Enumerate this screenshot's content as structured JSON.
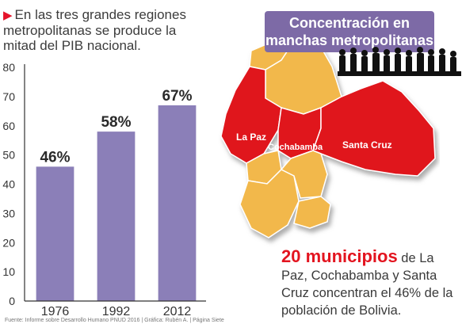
{
  "intro": {
    "bullet": "▶",
    "text": "En las  tres grandes regiones metropolitanas se produce la mitad del PIB nacional."
  },
  "title": "Concentración en manchas metropolitanas",
  "map": {
    "labels": {
      "la_paz": "La Paz",
      "cochabamba": "Cochabamba",
      "santa_cruz": "Santa Cruz"
    },
    "colors": {
      "highlight": "#e0141e",
      "other": "#f2b84b",
      "border": "#ffffff"
    }
  },
  "caption": {
    "highlight": "20 municipios",
    "text": " de La Paz, Cochabamba y Santa Cruz concentran el 46% de la población de Bolivia."
  },
  "source": "Fuente: Informe sobre Desarrollo Humano PNUD 2016 | Gráfica: Rubén A. | Página Siete",
  "chart_data": {
    "type": "bar",
    "categories": [
      "1976",
      "1992",
      "2012"
    ],
    "values": [
      46,
      58,
      67
    ],
    "data_labels": [
      "46%",
      "58%",
      "67%"
    ],
    "yticks": [
      "0",
      "10",
      "20",
      "30",
      "40",
      "50",
      "60",
      "70",
      "80"
    ],
    "ylim": [
      0,
      80
    ],
    "grid": false,
    "colors": {
      "bar": "#8b7fb8",
      "axis": "#333333"
    }
  }
}
